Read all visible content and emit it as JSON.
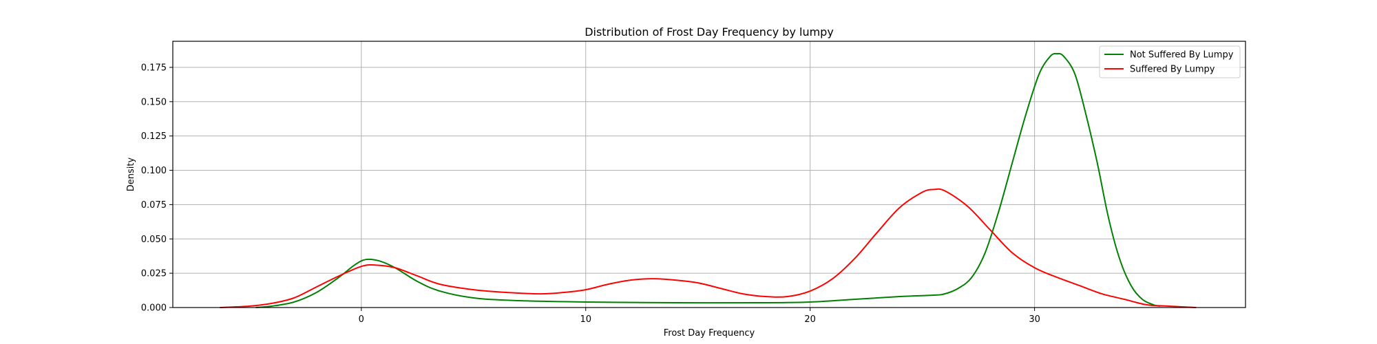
{
  "chart_data": {
    "type": "line",
    "title": "Distribution of Frost Day Frequency by lumpy",
    "xlabel": "Frost Day Frequency",
    "ylabel": "Density",
    "xlim": [
      -8.4,
      39.4
    ],
    "ylim": [
      0,
      0.194
    ],
    "xticks": [
      0,
      10,
      20,
      30
    ],
    "yticks": [
      0.0,
      0.025,
      0.05,
      0.075,
      0.1,
      0.125,
      0.15,
      0.175
    ],
    "ytick_labels": [
      "0.000",
      "0.025",
      "0.050",
      "0.075",
      "0.100",
      "0.125",
      "0.150",
      "0.175"
    ],
    "grid": true,
    "legend_position": "upper right",
    "series": [
      {
        "name": "Not Suffered By Lumpy",
        "color": "#008000",
        "points": [
          [
            -4.7,
            0.0
          ],
          [
            -4.0,
            0.001
          ],
          [
            -3.0,
            0.004
          ],
          [
            -2.0,
            0.011
          ],
          [
            -1.0,
            0.022
          ],
          [
            -0.3,
            0.031
          ],
          [
            0.2,
            0.035
          ],
          [
            0.8,
            0.034
          ],
          [
            1.5,
            0.029
          ],
          [
            2.5,
            0.019
          ],
          [
            3.5,
            0.012
          ],
          [
            5.0,
            0.007
          ],
          [
            7.0,
            0.005
          ],
          [
            10.0,
            0.004
          ],
          [
            14.0,
            0.0035
          ],
          [
            18.0,
            0.0035
          ],
          [
            20.0,
            0.004
          ],
          [
            22.0,
            0.006
          ],
          [
            24.0,
            0.008
          ],
          [
            25.5,
            0.009
          ],
          [
            26.0,
            0.01
          ],
          [
            26.6,
            0.014
          ],
          [
            27.2,
            0.022
          ],
          [
            27.8,
            0.04
          ],
          [
            28.4,
            0.07
          ],
          [
            29.0,
            0.105
          ],
          [
            29.6,
            0.14
          ],
          [
            30.2,
            0.17
          ],
          [
            30.7,
            0.183
          ],
          [
            31.0,
            0.185
          ],
          [
            31.3,
            0.183
          ],
          [
            31.8,
            0.17
          ],
          [
            32.3,
            0.14
          ],
          [
            32.8,
            0.105
          ],
          [
            33.3,
            0.065
          ],
          [
            33.8,
            0.035
          ],
          [
            34.3,
            0.016
          ],
          [
            34.8,
            0.006
          ],
          [
            35.3,
            0.002
          ],
          [
            35.6,
            0.001
          ]
        ]
      },
      {
        "name": "Suffered By Lumpy",
        "color": "#ff0000",
        "points": [
          [
            -6.3,
            0.0
          ],
          [
            -5.0,
            0.001
          ],
          [
            -4.0,
            0.003
          ],
          [
            -3.0,
            0.007
          ],
          [
            -2.0,
            0.015
          ],
          [
            -1.0,
            0.023
          ],
          [
            0.0,
            0.03
          ],
          [
            0.6,
            0.031
          ],
          [
            1.5,
            0.029
          ],
          [
            2.5,
            0.023
          ],
          [
            3.5,
            0.017
          ],
          [
            5.0,
            0.013
          ],
          [
            6.5,
            0.011
          ],
          [
            8.0,
            0.01
          ],
          [
            9.0,
            0.011
          ],
          [
            10.0,
            0.013
          ],
          [
            11.0,
            0.017
          ],
          [
            12.0,
            0.02
          ],
          [
            13.0,
            0.021
          ],
          [
            14.0,
            0.02
          ],
          [
            15.0,
            0.018
          ],
          [
            16.0,
            0.014
          ],
          [
            17.0,
            0.01
          ],
          [
            18.0,
            0.008
          ],
          [
            19.0,
            0.008
          ],
          [
            20.0,
            0.012
          ],
          [
            21.0,
            0.021
          ],
          [
            22.0,
            0.036
          ],
          [
            23.0,
            0.055
          ],
          [
            24.0,
            0.073
          ],
          [
            25.0,
            0.084
          ],
          [
            25.5,
            0.086
          ],
          [
            26.0,
            0.085
          ],
          [
            27.0,
            0.074
          ],
          [
            28.0,
            0.057
          ],
          [
            29.0,
            0.04
          ],
          [
            30.0,
            0.029
          ],
          [
            31.0,
            0.022
          ],
          [
            32.0,
            0.016
          ],
          [
            33.0,
            0.01
          ],
          [
            34.0,
            0.006
          ],
          [
            35.0,
            0.002
          ],
          [
            36.0,
            0.001
          ],
          [
            37.2,
            0.0
          ]
        ]
      }
    ]
  }
}
